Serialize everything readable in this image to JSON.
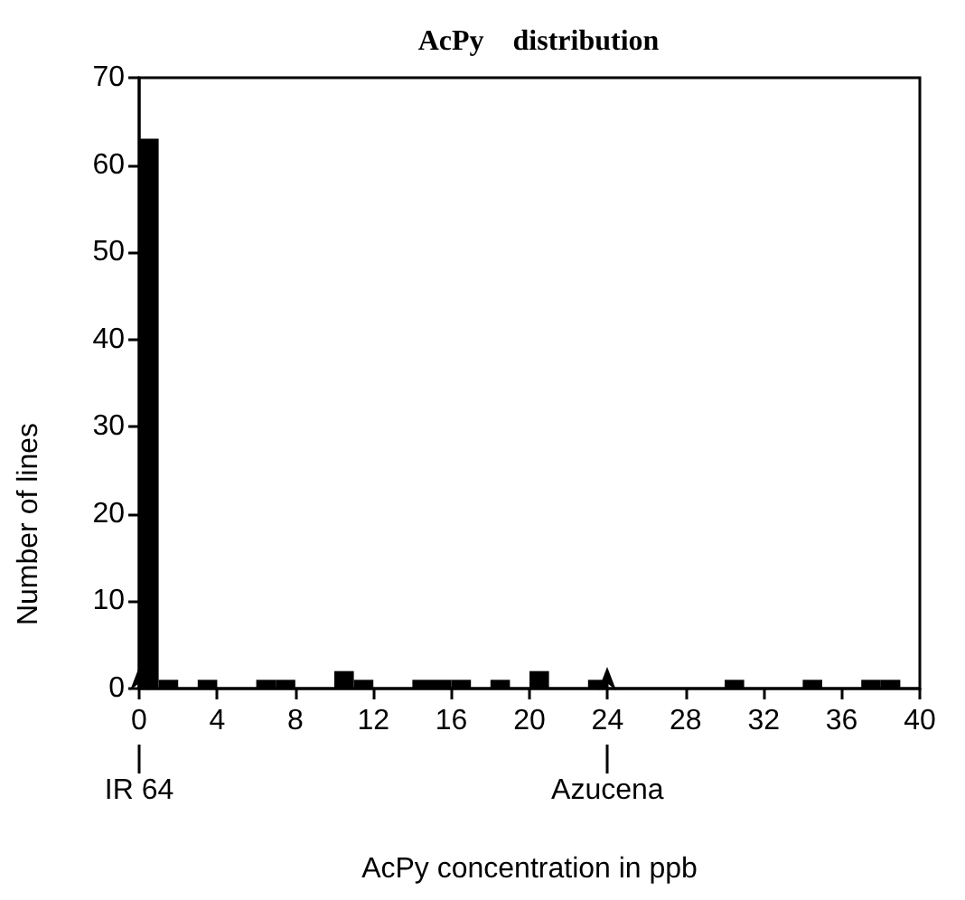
{
  "chart_data": {
    "type": "histogram",
    "title": "AcPy    distribution",
    "xlabel": "AcPy concentration in ppb",
    "ylabel": "Number of lines",
    "bins": [
      0,
      1,
      2,
      3,
      4,
      5,
      6,
      7,
      8,
      9,
      10,
      11,
      12,
      13,
      14,
      15,
      16,
      17,
      18,
      19,
      20,
      21,
      22,
      23,
      24,
      25,
      26,
      27,
      28,
      29,
      30,
      31,
      32,
      33,
      34,
      35,
      36,
      37,
      38,
      39,
      40
    ],
    "values": [
      63,
      1,
      0,
      1,
      0,
      0,
      1,
      1,
      0,
      0,
      2,
      1,
      0,
      0,
      1,
      1,
      1,
      0,
      1,
      0,
      2,
      0,
      0,
      1,
      0,
      0,
      0,
      0,
      0,
      0,
      1,
      0,
      0,
      0,
      1,
      0,
      0,
      1,
      1,
      0
    ],
    "color": "#000000",
    "xlim": [
      0,
      40
    ],
    "xticks": [
      0,
      4,
      8,
      12,
      16,
      20,
      24,
      28,
      32,
      36,
      40
    ],
    "ylim": [
      0,
      70
    ],
    "yticks": [
      0,
      10,
      20,
      30,
      40,
      50,
      60,
      70
    ],
    "grid": false,
    "annotations": [
      {
        "text": "IR 64",
        "x": 0,
        "y": 0
      },
      {
        "text": "Azucena",
        "x": 24,
        "y": 0
      }
    ]
  }
}
